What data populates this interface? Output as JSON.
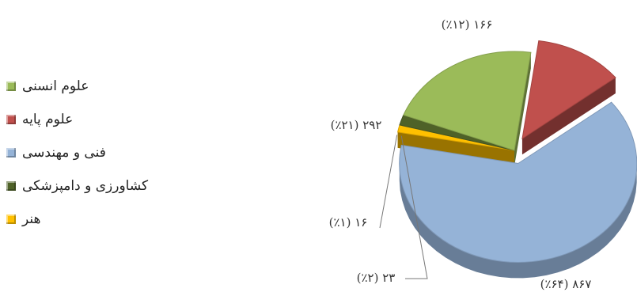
{
  "chart_data": {
    "type": "pie",
    "three_d": true,
    "title": "",
    "legend_position": "left",
    "slices": [
      {
        "name": "علوم انسنی",
        "value": 292,
        "label": "(٪۲۱) ۲۹۲",
        "color": "#9bbb59",
        "exploded": false
      },
      {
        "name": "علوم پایه",
        "value": 166,
        "label": "(٪۱۲) ۱۶۶",
        "color": "#c0504d",
        "exploded": true
      },
      {
        "name": "فنی و مهندسی",
        "value": 867,
        "label": "(٪۶۴) ۸۶۷",
        "color": "#95b3d7",
        "exploded": true
      },
      {
        "name": "کشاورزی و دامپزشکی",
        "value": 23,
        "label": "(٪۲) ۲۳",
        "color": "#4f6228",
        "exploded": false
      },
      {
        "name": "هنر",
        "value": 16,
        "label": "(٪۱) ۱۶",
        "color": "#ffc000",
        "exploded": false
      }
    ]
  }
}
